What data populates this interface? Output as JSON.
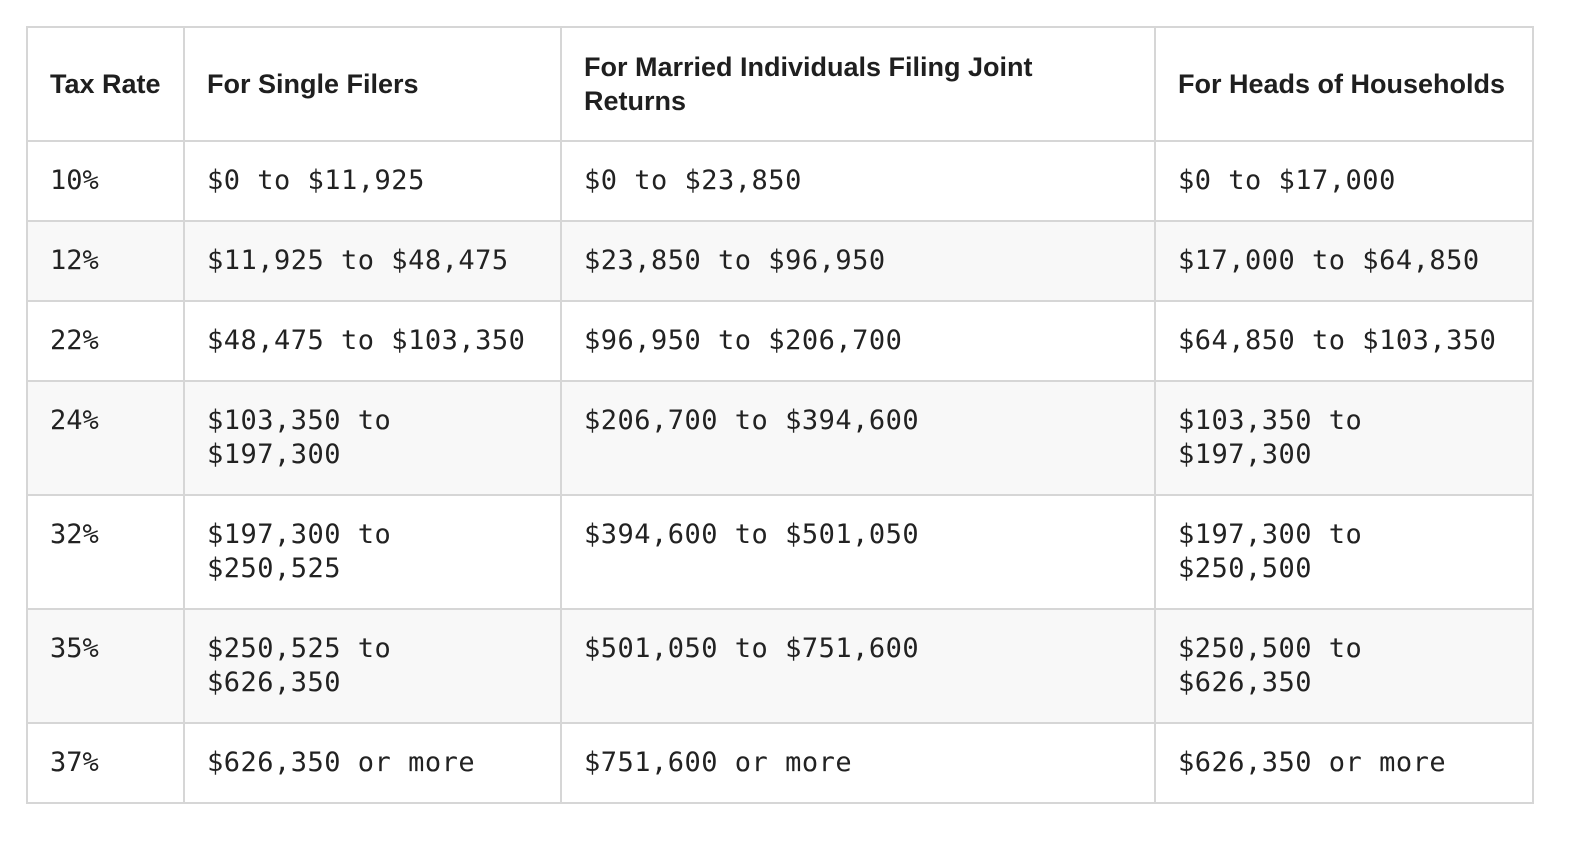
{
  "table": {
    "headers": [
      "Tax Rate",
      "For Single Filers",
      "For Married Individuals Filing Joint Returns",
      "For Heads of Households"
    ],
    "rows": [
      [
        "10%",
        "$0 to $11,925",
        "$0 to $23,850",
        "$0 to $17,000"
      ],
      [
        "12%",
        "$11,925 to $48,475",
        "$23,850 to $96,950",
        "$17,000 to $64,850"
      ],
      [
        "22%",
        "$48,475 to $103,350",
        "$96,950 to $206,700",
        "$64,850 to $103,350"
      ],
      [
        "24%",
        "$103,350 to $197,300",
        "$206,700 to $394,600",
        "$103,350 to $197,300"
      ],
      [
        "32%",
        "$197,300 to $250,525",
        "$394,600 to $501,050",
        "$197,300 to $250,500"
      ],
      [
        "35%",
        "$250,525 to $626,350",
        "$501,050 to $751,600",
        "$250,500 to $626,350"
      ],
      [
        "37%",
        "$626,350 or more",
        "$751,600 or more",
        "$626,350 or more"
      ]
    ]
  }
}
